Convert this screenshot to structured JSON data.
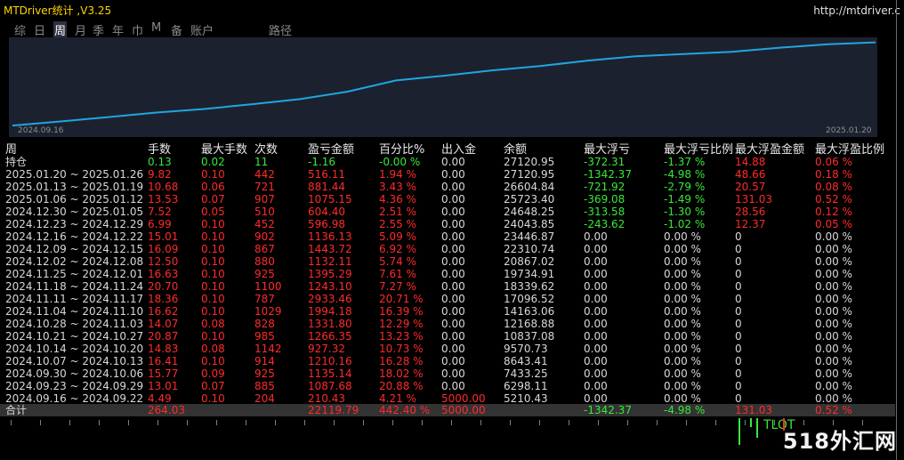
{
  "window": {
    "title": "MTDriver统计 ,V3.25",
    "url": "http://mtdriver.c"
  },
  "tabs": [
    "综",
    "日",
    "周",
    "月",
    "季",
    "年",
    "巾",
    "M",
    "备",
    "账户",
    "路径"
  ],
  "active_tab": 2,
  "chart": {
    "start_label": "2024.09.16",
    "end_label": "2025.01.20",
    "line_color": "#1fa6e0",
    "balance": [
      5210.43,
      6298.11,
      7433.25,
      8643.41,
      9570.73,
      10837.08,
      12168.88,
      14163.06,
      17096.52,
      18339.62,
      19734.91,
      20867.02,
      22310.74,
      23446.87,
      24043.85,
      24648.25,
      25723.4,
      26604.84,
      27120.95
    ]
  },
  "columns": [
    "周",
    "手数",
    "最大手数",
    "次数",
    "盈亏金额",
    "百分比%",
    "出入金",
    "余额",
    "最大浮亏",
    "最大浮亏比例",
    "最大浮盈金额",
    "最大浮盈比例"
  ],
  "rows": [
    [
      "持仓",
      "0.13",
      "0.02",
      "11",
      "-1.16",
      "-0.00 %",
      "0.00",
      "27120.95",
      "-372.31",
      "-1.37 %",
      "14.88",
      "0.06 %"
    ],
    [
      "2025.01.20 ~ 2025.01.26",
      "9.82",
      "0.10",
      "442",
      "516.11",
      "1.94 %",
      "0.00",
      "27120.95",
      "-1342.37",
      "-4.98 %",
      "48.66",
      "0.18 %"
    ],
    [
      "2025.01.13 ~ 2025.01.19",
      "10.68",
      "0.06",
      "721",
      "881.44",
      "3.43 %",
      "0.00",
      "26604.84",
      "-721.92",
      "-2.79 %",
      "20.57",
      "0.08 %"
    ],
    [
      "2025.01.06 ~ 2025.01.12",
      "13.53",
      "0.07",
      "907",
      "1075.15",
      "4.36 %",
      "0.00",
      "25723.40",
      "-369.08",
      "-1.49 %",
      "131.03",
      "0.52 %"
    ],
    [
      "2024.12.30 ~ 2025.01.05",
      "7.52",
      "0.05",
      "510",
      "604.40",
      "2.51 %",
      "0.00",
      "24648.25",
      "-313.58",
      "-1.30 %",
      "28.56",
      "0.12 %"
    ],
    [
      "2024.12.23 ~ 2024.12.29",
      "6.99",
      "0.10",
      "452",
      "596.98",
      "2.55 %",
      "0.00",
      "24043.85",
      "-243.62",
      "-1.02 %",
      "12.37",
      "0.05 %"
    ],
    [
      "2024.12.16 ~ 2024.12.22",
      "15.01",
      "0.10",
      "902",
      "1136.13",
      "5.09 %",
      "0.00",
      "23446.87",
      "0.00",
      "0.00 %",
      "0",
      "0.00 %"
    ],
    [
      "2024.12.09 ~ 2024.12.15",
      "16.09",
      "0.10",
      "867",
      "1443.72",
      "6.92 %",
      "0.00",
      "22310.74",
      "0.00",
      "0.00 %",
      "0",
      "0.00 %"
    ],
    [
      "2024.12.02 ~ 2024.12.08",
      "12.50",
      "0.10",
      "880",
      "1132.11",
      "5.74 %",
      "0.00",
      "20867.02",
      "0.00",
      "0.00 %",
      "0",
      "0.00 %"
    ],
    [
      "2024.11.25 ~ 2024.12.01",
      "16.63",
      "0.10",
      "925",
      "1395.29",
      "7.61 %",
      "0.00",
      "19734.91",
      "0.00",
      "0.00 %",
      "0",
      "0.00 %"
    ],
    [
      "2024.11.18 ~ 2024.11.24",
      "20.70",
      "0.10",
      "1100",
      "1243.10",
      "7.27 %",
      "0.00",
      "18339.62",
      "0.00",
      "0.00 %",
      "0",
      "0.00 %"
    ],
    [
      "2024.11.11 ~ 2024.11.17",
      "18.36",
      "0.10",
      "787",
      "2933.46",
      "20.71 %",
      "0.00",
      "17096.52",
      "0.00",
      "0.00 %",
      "0",
      "0.00 %"
    ],
    [
      "2024.11.04 ~ 2024.11.10",
      "16.62",
      "0.10",
      "1029",
      "1994.18",
      "16.39 %",
      "0.00",
      "14163.06",
      "0.00",
      "0.00 %",
      "0",
      "0.00 %"
    ],
    [
      "2024.10.28 ~ 2024.11.03",
      "14.07",
      "0.08",
      "828",
      "1331.80",
      "12.29 %",
      "0.00",
      "12168.88",
      "0.00",
      "0.00 %",
      "0",
      "0.00 %"
    ],
    [
      "2024.10.21 ~ 2024.10.27",
      "20.87",
      "0.10",
      "985",
      "1266.35",
      "13.23 %",
      "0.00",
      "10837.08",
      "0.00",
      "0.00 %",
      "0",
      "0.00 %"
    ],
    [
      "2024.10.14 ~ 2024.10.20",
      "14.83",
      "0.08",
      "1142",
      "927.32",
      "10.73 %",
      "0.00",
      "9570.73",
      "0.00",
      "0.00 %",
      "0",
      "0.00 %"
    ],
    [
      "2024.10.07 ~ 2024.10.13",
      "16.41",
      "0.10",
      "914",
      "1210.16",
      "16.28 %",
      "0.00",
      "8643.41",
      "0.00",
      "0.00 %",
      "0",
      "0.00 %"
    ],
    [
      "2024.09.30 ~ 2024.10.06",
      "15.77",
      "0.09",
      "925",
      "1135.14",
      "18.02 %",
      "0.00",
      "7433.25",
      "0.00",
      "0.00 %",
      "0",
      "0.00 %"
    ],
    [
      "2024.09.23 ~ 2024.09.29",
      "13.01",
      "0.07",
      "885",
      "1087.68",
      "20.88 %",
      "0.00",
      "6298.11",
      "0.00",
      "0.00 %",
      "0",
      "0.00 %"
    ],
    [
      "2024.09.16 ~ 2024.09.22",
      "4.49",
      "0.10",
      "204",
      "210.43",
      "4.21 %",
      "5000.00",
      "5210.43",
      "0.00",
      "0.00 %",
      "0",
      "0.00 %"
    ]
  ],
  "total": [
    "合计",
    "264.03",
    "",
    "",
    "22119.79",
    "442.40 %",
    "5000.00",
    "",
    "-1342.37",
    "-4.98 %",
    "131.03",
    "0.52 %"
  ],
  "bottom_text": "TLOT",
  "watermark": "518外汇网"
}
